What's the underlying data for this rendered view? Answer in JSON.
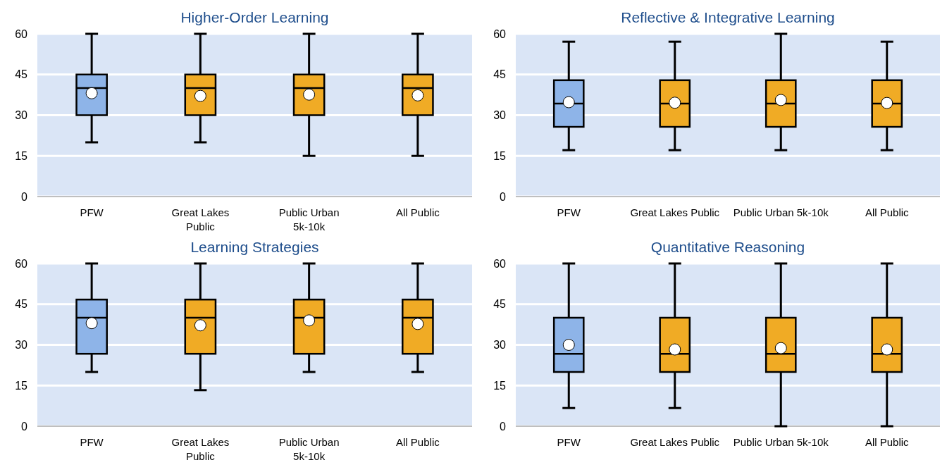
{
  "chart_data": [
    {
      "type": "box",
      "title": "Higher-Order Learning",
      "categories": [
        "PFW",
        "Great Lakes Public",
        "Public Urban 5k-10k",
        "All Public"
      ],
      "colors": [
        "#8eb4e8",
        "#f0ab25",
        "#f0ab25",
        "#f0ab25"
      ],
      "ylim": [
        0,
        60
      ],
      "yticks": [
        0,
        15,
        30,
        45,
        60
      ],
      "grid": "y",
      "boxes": [
        {
          "low": 20,
          "q1": 30,
          "median": 40,
          "q3": 45,
          "high": 60,
          "mean": 38.1
        },
        {
          "low": 20,
          "q1": 30,
          "median": 40,
          "q3": 45,
          "high": 60,
          "mean": 37.1
        },
        {
          "low": 15,
          "q1": 30,
          "median": 40,
          "q3": 45,
          "high": 60,
          "mean": 37.6
        },
        {
          "low": 15,
          "q1": 30,
          "median": 40,
          "q3": 45,
          "high": 60,
          "mean": 37.3
        }
      ]
    },
    {
      "type": "box",
      "title": "Reflective & Integrative Learning",
      "categories": [
        "PFW",
        "Great Lakes Public",
        "Public Urban 5k-10k",
        "All Public"
      ],
      "colors": [
        "#8eb4e8",
        "#f0ab25",
        "#f0ab25",
        "#f0ab25"
      ],
      "ylim": [
        0,
        60
      ],
      "yticks": [
        0,
        15,
        30,
        45,
        60
      ],
      "grid": "y",
      "boxes": [
        {
          "low": 17.1,
          "q1": 25.7,
          "median": 34.3,
          "q3": 42.9,
          "high": 57.1,
          "mean": 34.8
        },
        {
          "low": 17.1,
          "q1": 25.7,
          "median": 34.3,
          "q3": 42.9,
          "high": 57.1,
          "mean": 34.6
        },
        {
          "low": 17.1,
          "q1": 25.7,
          "median": 34.3,
          "q3": 42.9,
          "high": 60,
          "mean": 35.6
        },
        {
          "low": 17.1,
          "q1": 25.7,
          "median": 34.3,
          "q3": 42.9,
          "high": 57.1,
          "mean": 34.5
        }
      ]
    },
    {
      "type": "box",
      "title": "Learning Strategies",
      "categories": [
        "PFW",
        "Great Lakes Public",
        "Public Urban 5k-10k",
        "All Public"
      ],
      "colors": [
        "#8eb4e8",
        "#f0ab25",
        "#f0ab25",
        "#f0ab25"
      ],
      "ylim": [
        0,
        60
      ],
      "yticks": [
        0,
        15,
        30,
        45,
        60
      ],
      "grid": "y",
      "boxes": [
        {
          "low": 20,
          "q1": 26.7,
          "median": 40,
          "q3": 46.7,
          "high": 60,
          "mean": 38
        },
        {
          "low": 13.3,
          "q1": 26.7,
          "median": 40,
          "q3": 46.7,
          "high": 60,
          "mean": 37.2
        },
        {
          "low": 20,
          "q1": 26.7,
          "median": 40,
          "q3": 46.7,
          "high": 60,
          "mean": 39
        },
        {
          "low": 20,
          "q1": 26.7,
          "median": 40,
          "q3": 46.7,
          "high": 60,
          "mean": 37.7
        }
      ]
    },
    {
      "type": "box",
      "title": "Quantitative Reasoning",
      "categories": [
        "PFW",
        "Great Lakes Public",
        "Public Urban 5k-10k",
        "All Public"
      ],
      "colors": [
        "#8eb4e8",
        "#f0ab25",
        "#f0ab25",
        "#f0ab25"
      ],
      "ylim": [
        0,
        60
      ],
      "yticks": [
        0,
        15,
        30,
        45,
        60
      ],
      "grid": "y",
      "boxes": [
        {
          "low": 6.7,
          "q1": 20,
          "median": 26.7,
          "q3": 40,
          "high": 60,
          "mean": 30
        },
        {
          "low": 6.7,
          "q1": 20,
          "median": 26.7,
          "q3": 40,
          "high": 60,
          "mean": 28.3
        },
        {
          "low": 0,
          "q1": 20,
          "median": 26.7,
          "q3": 40,
          "high": 60,
          "mean": 28.8
        },
        {
          "low": 0,
          "q1": 20,
          "median": 26.7,
          "q3": 40,
          "high": 60,
          "mean": 28.3
        }
      ]
    }
  ]
}
